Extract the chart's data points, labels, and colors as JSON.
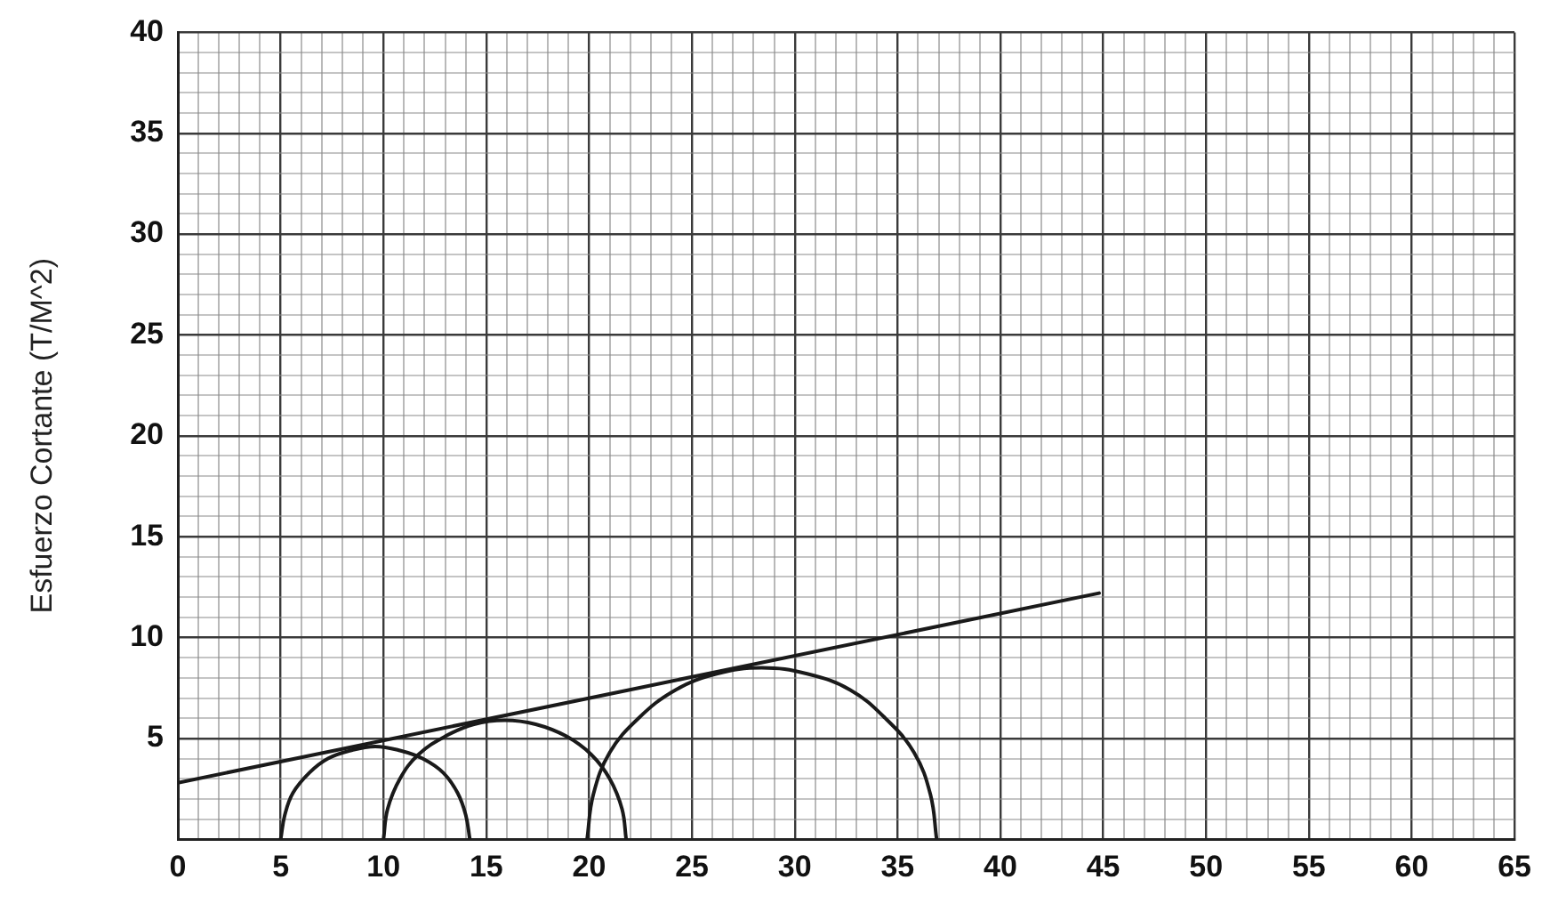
{
  "chart_data": {
    "type": "line",
    "ylabel": "Esfuerzo Cortante (T/M^2)",
    "xlim": [
      0,
      65
    ],
    "ylim": [
      0,
      40
    ],
    "xticks": [
      0,
      {
        "value": 1,
        "label": null
      },
      {
        "value": 2,
        "label": null
      },
      {
        "value": 3,
        "label": null
      },
      {
        "value": 4,
        "label": null
      },
      5,
      {
        "value": 6,
        "label": null
      },
      {
        "value": 7,
        "label": null
      },
      {
        "value": 8,
        "label": null
      },
      {
        "value": 9,
        "label": null
      },
      10,
      {
        "value": 11,
        "label": null
      },
      {
        "value": 12,
        "label": null
      },
      {
        "value": 13,
        "label": null
      },
      {
        "value": 14,
        "label": null
      },
      15,
      {
        "value": 16,
        "label": null
      },
      {
        "value": 17,
        "label": null
      },
      {
        "value": 18,
        "label": null
      },
      {
        "value": 19,
        "label": null
      },
      20,
      {
        "value": 21,
        "label": null
      },
      {
        "value": 22,
        "label": null
      },
      {
        "value": 23,
        "label": null
      },
      {
        "value": 24,
        "label": null
      },
      25,
      {
        "value": 26,
        "label": null
      },
      {
        "value": 27,
        "label": null
      },
      {
        "value": 28,
        "label": null
      },
      {
        "value": 29,
        "label": null
      },
      30,
      {
        "value": 31,
        "label": null
      },
      {
        "value": 32,
        "label": null
      },
      {
        "value": 33,
        "label": null
      },
      {
        "value": 34,
        "label": null
      },
      35,
      {
        "value": 36,
        "label": null
      },
      {
        "value": 37,
        "label": null
      },
      {
        "value": 38,
        "label": null
      },
      {
        "value": 39,
        "label": null
      },
      40,
      {
        "value": 41,
        "label": null
      },
      {
        "value": 42,
        "label": null
      },
      {
        "value": 43,
        "label": null
      },
      {
        "value": 44,
        "label": null
      },
      45,
      {
        "value": 46,
        "label": null
      },
      {
        "value": 47,
        "label": null
      },
      {
        "value": 48,
        "label": null
      },
      {
        "value": 49,
        "label": null
      },
      50,
      {
        "value": 51,
        "label": null
      },
      {
        "value": 52,
        "label": null
      },
      {
        "value": 53,
        "label": null
      },
      {
        "value": 54,
        "label": null
      },
      55,
      {
        "value": 56,
        "label": null
      },
      {
        "value": 57,
        "label": null
      },
      {
        "value": 58,
        "label": null
      },
      {
        "value": 59,
        "label": null
      },
      60,
      {
        "value": 61,
        "label": null
      },
      {
        "value": 62,
        "label": null
      },
      {
        "value": 63,
        "label": null
      },
      {
        "value": 64,
        "label": null
      },
      65
    ],
    "yticks": [
      {
        "value": 0,
        "label": null
      },
      {
        "value": 1,
        "label": null
      },
      {
        "value": 2,
        "label": null
      },
      {
        "value": 3,
        "label": null
      },
      {
        "value": 4,
        "label": null
      },
      5,
      {
        "value": 6,
        "label": null
      },
      {
        "value": 7,
        "label": null
      },
      {
        "value": 8,
        "label": null
      },
      {
        "value": 9,
        "label": null
      },
      10,
      {
        "value": 11,
        "label": null
      },
      {
        "value": 12,
        "label": null
      },
      {
        "value": 13,
        "label": null
      },
      {
        "value": 14,
        "label": null
      },
      15,
      {
        "value": 16,
        "label": null
      },
      {
        "value": 17,
        "label": null
      },
      {
        "value": 18,
        "label": null
      },
      {
        "value": 19,
        "label": null
      },
      20,
      {
        "value": 21,
        "label": null
      },
      {
        "value": 22,
        "label": null
      },
      {
        "value": 23,
        "label": null
      },
      {
        "value": 24,
        "label": null
      },
      25,
      {
        "value": 26,
        "label": null
      },
      {
        "value": 27,
        "label": null
      },
      {
        "value": 28,
        "label": null
      },
      {
        "value": 29,
        "label": null
      },
      30,
      {
        "value": 31,
        "label": null
      },
      {
        "value": 32,
        "label": null
      },
      {
        "value": 33,
        "label": null
      },
      {
        "value": 34,
        "label": null
      },
      35,
      {
        "value": 36,
        "label": null
      },
      {
        "value": 37,
        "label": null
      },
      {
        "value": 38,
        "label": null
      },
      {
        "value": 39,
        "label": null
      },
      40
    ],
    "grid": true,
    "marker": "none",
    "line_style": "solid",
    "series": [
      {
        "color": "#1a1a1a",
        "x": [
          0,
          44.8
        ],
        "values": [
          2.8,
          12.2
        ]
      },
      {
        "color": "#1a1a1a",
        "x": [
          5.0,
          5.2,
          5.6,
          6.4,
          7.3,
          8.4,
          9.6,
          10.8,
          11.9,
          12.9,
          13.6,
          14.0,
          14.2
        ],
        "values": [
          0,
          1.2,
          2.3,
          3.3,
          4.0,
          4.4,
          4.6,
          4.4,
          4.0,
          3.3,
          2.3,
          1.2,
          0
        ]
      },
      {
        "color": "#1a1a1a",
        "x": [
          10.0,
          10.2,
          10.8,
          11.7,
          13.0,
          14.4,
          15.9,
          17.4,
          18.9,
          20.1,
          21.0,
          21.6,
          21.8
        ],
        "values": [
          0,
          1.5,
          3.0,
          4.2,
          5.1,
          5.7,
          5.9,
          5.7,
          5.1,
          4.2,
          3.0,
          1.5,
          0
        ]
      },
      {
        "color": "#1a1a1a",
        "x": [
          19.9,
          20.2,
          21.0,
          22.4,
          24.2,
          26.2,
          28.4,
          30.6,
          32.7,
          34.4,
          35.8,
          36.6,
          36.9
        ],
        "values": [
          0,
          2.2,
          4.3,
          6.0,
          7.4,
          8.2,
          8.5,
          8.2,
          7.4,
          6.0,
          4.3,
          2.2,
          0
        ]
      }
    ]
  }
}
